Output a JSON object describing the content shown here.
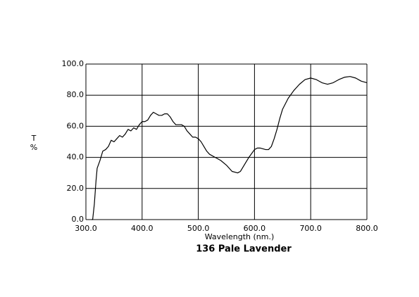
{
  "chart_data": {
    "type": "line",
    "title": "136 Pale Lavender",
    "xlabel": "Wavelength (nm.)",
    "ylabel": [
      "T",
      "%"
    ],
    "x": [
      310,
      312,
      315,
      318,
      320,
      325,
      330,
      335,
      340,
      345,
      350,
      355,
      360,
      365,
      370,
      375,
      380,
      385,
      390,
      395,
      400,
      405,
      410,
      415,
      420,
      425,
      430,
      435,
      440,
      445,
      450,
      455,
      460,
      465,
      470,
      475,
      480,
      485,
      490,
      495,
      500,
      505,
      510,
      515,
      520,
      530,
      540,
      550,
      560,
      570,
      575,
      580,
      590,
      600,
      605,
      610,
      620,
      625,
      630,
      635,
      640,
      645,
      650,
      660,
      670,
      680,
      690,
      700,
      710,
      720,
      730,
      740,
      750,
      760,
      770,
      780,
      790,
      800
    ],
    "series": [
      {
        "color": "#000000",
        "values": [
          0,
          0,
          10,
          25,
          33,
          38,
          44,
          45,
          47,
          51,
          50,
          52,
          54,
          53,
          55,
          58,
          57,
          59,
          58,
          61,
          63,
          63,
          64,
          67,
          69,
          68,
          67,
          67,
          68,
          68,
          66,
          63,
          61,
          61,
          61,
          60,
          57,
          55,
          53,
          53,
          52,
          50,
          47,
          44,
          42,
          40,
          38,
          35,
          31,
          30,
          31,
          34,
          40,
          45,
          46,
          46,
          45,
          45,
          47,
          52,
          58,
          65,
          71,
          78,
          83,
          87,
          90,
          91,
          90,
          88,
          87,
          88,
          90,
          91.5,
          92,
          91,
          89,
          88
        ]
      }
    ],
    "xlim": [
      300,
      800
    ],
    "xticks": [
      {
        "value": 300,
        "label": "300.0"
      },
      {
        "value": 400,
        "label": "400.0"
      },
      {
        "value": 500,
        "label": "500.0"
      },
      {
        "value": 600,
        "label": "600.0"
      },
      {
        "value": 700,
        "label": "700.0"
      },
      {
        "value": 800,
        "label": "800.0"
      }
    ],
    "ylim": [
      0,
      100
    ],
    "yticks": [
      {
        "value": 0,
        "label": "0.0"
      },
      {
        "value": 20,
        "label": "20.0"
      },
      {
        "value": 40,
        "label": "40.0"
      },
      {
        "value": 60,
        "label": "60.0"
      },
      {
        "value": 80,
        "label": "80.0"
      },
      {
        "value": 100,
        "label": "100.0"
      }
    ],
    "grid": true
  }
}
